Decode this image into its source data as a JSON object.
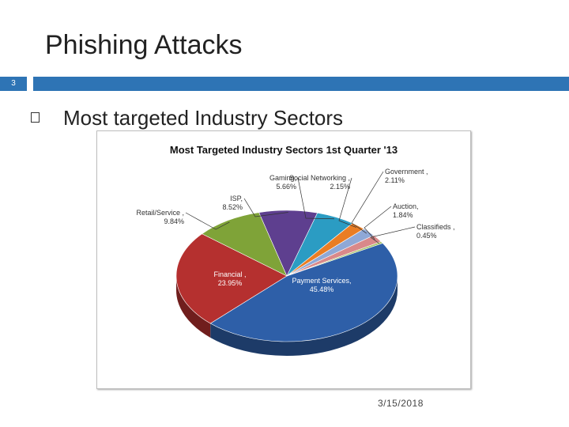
{
  "slide": {
    "title": "Phishing Attacks",
    "page_number": "3",
    "bullet": "Most targeted Industry Sectors",
    "date": "3/15/2018"
  },
  "colors": {
    "accent": "#2e74b5"
  },
  "chart_data": {
    "type": "pie",
    "title": "Most Targeted Industry Sectors 1st Quarter '13",
    "slices": [
      {
        "label": "Payment Services,",
        "value": 45.48,
        "display": "45.48%",
        "color": "#2e5fa8"
      },
      {
        "label": "Financial ,",
        "value": 23.95,
        "display": "23.95%",
        "color": "#b5302f"
      },
      {
        "label": "Retail/Service ,",
        "value": 9.84,
        "display": "9.84%",
        "color": "#7fa338"
      },
      {
        "label": "ISP,",
        "value": 8.52,
        "display": "8.52%",
        "color": "#5e3f8f"
      },
      {
        "label": "Gaming,",
        "value": 5.66,
        "display": "5.66%",
        "color": "#2b9cc3"
      },
      {
        "label": "Social Networking ,",
        "value": 2.15,
        "display": "2.15%",
        "color": "#ea7d23"
      },
      {
        "label": "Government ,",
        "value": 2.11,
        "display": "2.11%",
        "color": "#8fa8d6"
      },
      {
        "label": "Auction,",
        "value": 1.84,
        "display": "1.84%",
        "color": "#d9898a"
      },
      {
        "label": "Classifieds ,",
        "value": 0.45,
        "display": "0.45%",
        "color": "#a8c46a"
      }
    ]
  }
}
